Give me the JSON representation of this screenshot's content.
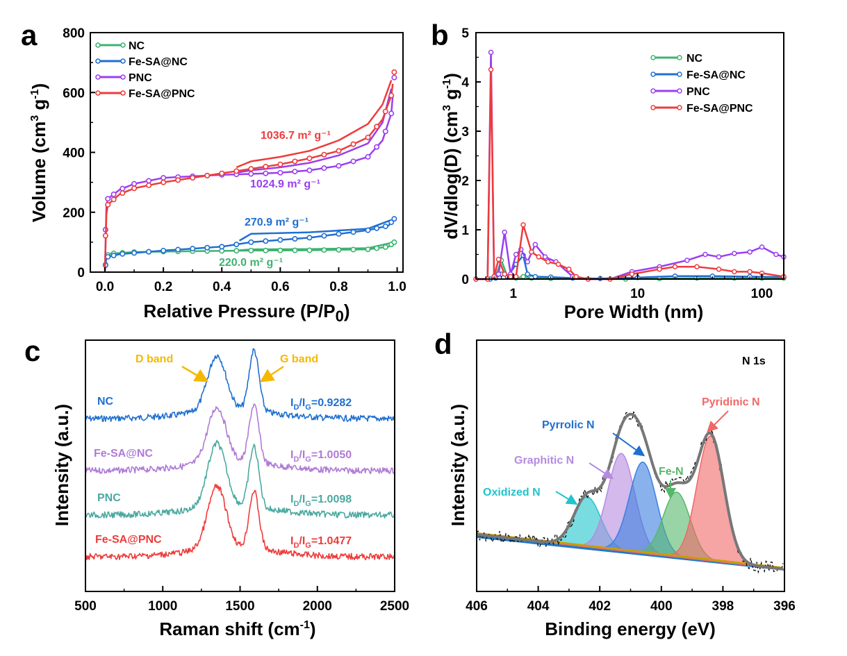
{
  "panels": {
    "a": {
      "letter": "a",
      "xlabel": "Relative Pressure (P/P",
      "xlabel_sub": "0",
      "xlabel_tail": ")",
      "ylabel": "Volume (cm",
      "ylabel_sup": "3",
      "ylabel_mid": " g",
      "ylabel_sup2": "-1",
      "ylabel_tail": ")"
    },
    "b": {
      "letter": "b",
      "xlabel": "Pore Width (nm)",
      "ylabel": "dV/dlog(D) (cm",
      "ylabel_sup": "3",
      "ylabel_mid": " g",
      "ylabel_sup2": "-1",
      "ylabel_tail": ")"
    },
    "c": {
      "letter": "c",
      "xlabel": "Raman shift (cm",
      "xlabel_sup": "-1",
      "xlabel_tail": ")",
      "ylabel": "Intensity (a.u.)",
      "d_band": "D band",
      "g_band": "G band"
    },
    "d": {
      "letter": "d",
      "xlabel": "Binding energy (eV)",
      "ylabel": "Intensity (a.u.)",
      "title": "N 1s"
    }
  },
  "colors": {
    "NC": "#3cb371",
    "Fe-SA@NC": "#1f6fd1",
    "PNC": "#9b3ef0",
    "Fe-SA@PNC": "#ee3b3b",
    "gold": "#f5b800"
  },
  "chart_data": [
    {
      "panel": "a",
      "type": "line",
      "xlim": [
        -0.05,
        1.02
      ],
      "ylim": [
        0,
        800
      ],
      "xticks": [
        0.0,
        0.2,
        0.4,
        0.6,
        0.8,
        1.0
      ],
      "yticks": [
        0,
        200,
        400,
        600,
        800
      ],
      "legend_position": "top-left",
      "series": [
        {
          "name": "NC",
          "adsorption": [
            [
              0.0,
              5
            ],
            [
              0.005,
              55
            ],
            [
              0.02,
              62
            ],
            [
              0.1,
              67
            ],
            [
              0.3,
              70
            ],
            [
              0.5,
              72
            ],
            [
              0.7,
              73
            ],
            [
              0.9,
              76
            ],
            [
              0.97,
              85
            ],
            [
              0.99,
              100
            ]
          ],
          "desorption": [
            [
              0.99,
              100
            ],
            [
              0.9,
              80
            ],
            [
              0.7,
              77
            ],
            [
              0.5,
              76
            ],
            [
              0.45,
              72
            ]
          ],
          "annotation": "220.0 m² g⁻¹"
        },
        {
          "name": "Fe-SA@NC",
          "adsorption": [
            [
              0.0,
              5
            ],
            [
              0.005,
              50
            ],
            [
              0.05,
              60
            ],
            [
              0.2,
              72
            ],
            [
              0.4,
              85
            ],
            [
              0.5,
              100
            ],
            [
              0.7,
              115
            ],
            [
              0.9,
              140
            ],
            [
              0.97,
              155
            ],
            [
              0.99,
              178
            ]
          ],
          "desorption": [
            [
              0.99,
              178
            ],
            [
              0.9,
              145
            ],
            [
              0.7,
              133
            ],
            [
              0.5,
              128
            ],
            [
              0.46,
              105
            ]
          ],
          "annotation": "270.9 m² g⁻¹"
        },
        {
          "name": "PNC",
          "adsorption": [
            [
              0.0,
              5
            ],
            [
              0.003,
              210
            ],
            [
              0.01,
              245
            ],
            [
              0.05,
              275
            ],
            [
              0.1,
              295
            ],
            [
              0.2,
              315
            ],
            [
              0.3,
              320
            ],
            [
              0.4,
              325
            ],
            [
              0.5,
              328
            ],
            [
              0.6,
              332
            ],
            [
              0.7,
              340
            ],
            [
              0.8,
              355
            ],
            [
              0.9,
              385
            ],
            [
              0.95,
              440
            ],
            [
              0.98,
              530
            ],
            [
              0.99,
              650
            ]
          ],
          "desorption": [
            [
              0.99,
              650
            ],
            [
              0.95,
              500
            ],
            [
              0.9,
              430
            ],
            [
              0.8,
              390
            ],
            [
              0.7,
              365
            ],
            [
              0.6,
              350
            ],
            [
              0.5,
              340
            ],
            [
              0.45,
              332
            ]
          ],
          "annotation": "1024.9 m² g⁻¹"
        },
        {
          "name": "Fe-SA@PNC",
          "adsorption": [
            [
              0.0,
              5
            ],
            [
              0.003,
              180
            ],
            [
              0.01,
              225
            ],
            [
              0.05,
              260
            ],
            [
              0.1,
              280
            ],
            [
              0.2,
              300
            ],
            [
              0.3,
              315
            ],
            [
              0.4,
              330
            ],
            [
              0.5,
              345
            ],
            [
              0.6,
              360
            ],
            [
              0.7,
              380
            ],
            [
              0.8,
              405
            ],
            [
              0.9,
              450
            ],
            [
              0.95,
              510
            ],
            [
              0.98,
              590
            ],
            [
              0.99,
              668
            ]
          ],
          "desorption": [
            [
              0.99,
              668
            ],
            [
              0.95,
              560
            ],
            [
              0.9,
              495
            ],
            [
              0.8,
              440
            ],
            [
              0.7,
              405
            ],
            [
              0.6,
              385
            ],
            [
              0.5,
              370
            ],
            [
              0.45,
              350
            ]
          ],
          "annotation": "1036.7 m² g⁻¹"
        }
      ]
    },
    {
      "panel": "b",
      "type": "line",
      "xscale": "log",
      "xlim": [
        0.5,
        150
      ],
      "ylim": [
        0,
        5
      ],
      "xticks": [
        1,
        10,
        100
      ],
      "yticks": [
        0,
        1,
        2,
        3,
        4,
        5
      ],
      "legend_position": "top-right",
      "series": [
        {
          "name": "NC",
          "x": [
            0.5,
            0.65,
            0.72,
            0.8,
            0.9,
            1.05,
            1.2,
            1.4,
            2,
            4,
            8,
            15,
            30,
            60,
            100,
            150
          ],
          "y": [
            0,
            0,
            0.05,
            0.38,
            0.04,
            0.02,
            0.05,
            0.02,
            0.01,
            0,
            0,
            0.01,
            0.02,
            0.02,
            0.02,
            0.02
          ]
        },
        {
          "name": "Fe-SA@NC",
          "x": [
            0.5,
            0.65,
            0.72,
            0.8,
            0.9,
            1.05,
            1.2,
            1.3,
            1.5,
            2,
            3,
            5,
            10,
            20,
            40,
            80,
            150
          ],
          "y": [
            0,
            0,
            0.02,
            0.1,
            0.05,
            0.3,
            0.48,
            0.1,
            0.05,
            0.04,
            0.02,
            0.01,
            0.03,
            0.06,
            0.06,
            0.05,
            0.04
          ]
        },
        {
          "name": "PNC",
          "x": [
            0.5,
            0.62,
            0.66,
            0.7,
            0.76,
            0.85,
            0.95,
            1.05,
            1.15,
            1.3,
            1.5,
            1.8,
            2.2,
            3,
            4,
            6,
            9,
            15,
            25,
            35,
            45,
            60,
            80,
            100,
            130,
            150
          ],
          "y": [
            0,
            0,
            4.6,
            0.05,
            0.1,
            0.95,
            0.1,
            0.5,
            0.6,
            0.35,
            0.7,
            0.45,
            0.35,
            0.05,
            0,
            0,
            0.15,
            0.25,
            0.38,
            0.5,
            0.45,
            0.52,
            0.55,
            0.65,
            0.5,
            0.45
          ]
        },
        {
          "name": "Fe-SA@PNC",
          "x": [
            0.5,
            0.62,
            0.66,
            0.7,
            0.76,
            0.85,
            0.95,
            1.05,
            1.2,
            1.4,
            1.6,
            1.9,
            2.3,
            2.8,
            3.2,
            4,
            6,
            9,
            15,
            20,
            30,
            45,
            60,
            80,
            100,
            150
          ],
          "y": [
            0,
            0,
            4.25,
            0.05,
            0.4,
            0.1,
            0.05,
            0.05,
            1.1,
            0.55,
            0.45,
            0.35,
            0.3,
            0.2,
            0.05,
            0,
            0,
            0.1,
            0.2,
            0.25,
            0.25,
            0.2,
            0.15,
            0.15,
            0.12,
            0.05
          ]
        }
      ]
    },
    {
      "panel": "c",
      "type": "line",
      "xlim": [
        500,
        2500
      ],
      "xticks": [
        500,
        1000,
        1500,
        2000,
        2500
      ],
      "series": [
        {
          "name": "NC",
          "ratio_label": "I_D/I_G=0.9282",
          "ratio_value": 0.9282,
          "d_peak": 1350,
          "g_peak": 1590
        },
        {
          "name": "Fe-SA@NC",
          "ratio_label": "I_D/I_G=1.0050",
          "ratio_value": 1.005,
          "d_peak": 1350,
          "g_peak": 1590
        },
        {
          "name": "PNC",
          "ratio_label": "I_D/I_G=1.0098",
          "ratio_value": 1.0098,
          "d_peak": 1350,
          "g_peak": 1590
        },
        {
          "name": "Fe-SA@PNC",
          "ratio_label": "I_D/I_G=1.0477",
          "ratio_value": 1.0477,
          "d_peak": 1350,
          "g_peak": 1590
        }
      ]
    },
    {
      "panel": "d",
      "type": "area",
      "xlim": [
        406,
        396
      ],
      "xticks": [
        406,
        404,
        402,
        400,
        398,
        396
      ],
      "components": [
        {
          "name": "Oxidized N",
          "center": 402.4,
          "color": "#20c4cc",
          "height": 0.4
        },
        {
          "name": "Graphitic N",
          "center": 401.3,
          "color": "#b58be0",
          "height": 0.78
        },
        {
          "name": "Pyrrolic N",
          "center": 400.6,
          "color": "#3b7fe0",
          "height": 0.73
        },
        {
          "name": "Fe-N",
          "center": 399.5,
          "color": "#55b86a",
          "height": 0.52
        },
        {
          "name": "Pyridinic N",
          "center": 398.4,
          "color": "#f06868",
          "height": 1.0
        }
      ]
    }
  ]
}
